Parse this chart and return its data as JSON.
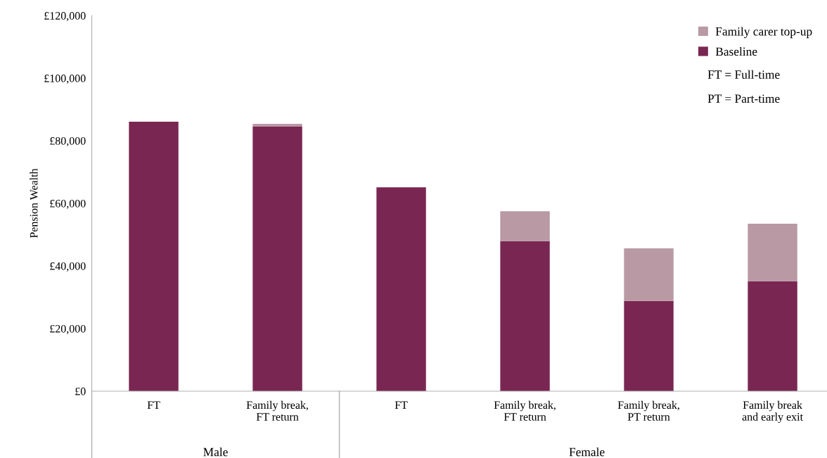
{
  "chart_data": {
    "type": "bar",
    "stacked": true,
    "ylabel": "Pension Wealth",
    "categories": [
      "FT",
      "Family break,\nFT return",
      "FT",
      "Family break,\nFT return",
      "Family break,\nPT return",
      "Family break\nand early exit"
    ],
    "series": [
      {
        "name": "Baseline",
        "color": "#7a2652",
        "values": [
          86100,
          84500,
          65100,
          47900,
          28800,
          35100
        ]
      },
      {
        "name": "Family carer top-up",
        "color": "#b899a4",
        "values": [
          0,
          900,
          0,
          9600,
          16800,
          18400
        ]
      }
    ],
    "ylim": [
      0,
      120000
    ],
    "yticks": [
      {
        "value": 0,
        "label": "£0"
      },
      {
        "value": 20000,
        "label": "£20,000"
      },
      {
        "value": 40000,
        "label": "£40,000"
      },
      {
        "value": 60000,
        "label": "£60,000"
      },
      {
        "value": 80000,
        "label": "£80,000"
      },
      {
        "value": 100000,
        "label": "£100,000"
      },
      {
        "value": 120000,
        "label": "£120,000"
      }
    ],
    "annotations": [
      "FT = Full-time",
      "PT = Part-time",
      "Male",
      "Female"
    ],
    "legend": "top right",
    "grid": false
  }
}
